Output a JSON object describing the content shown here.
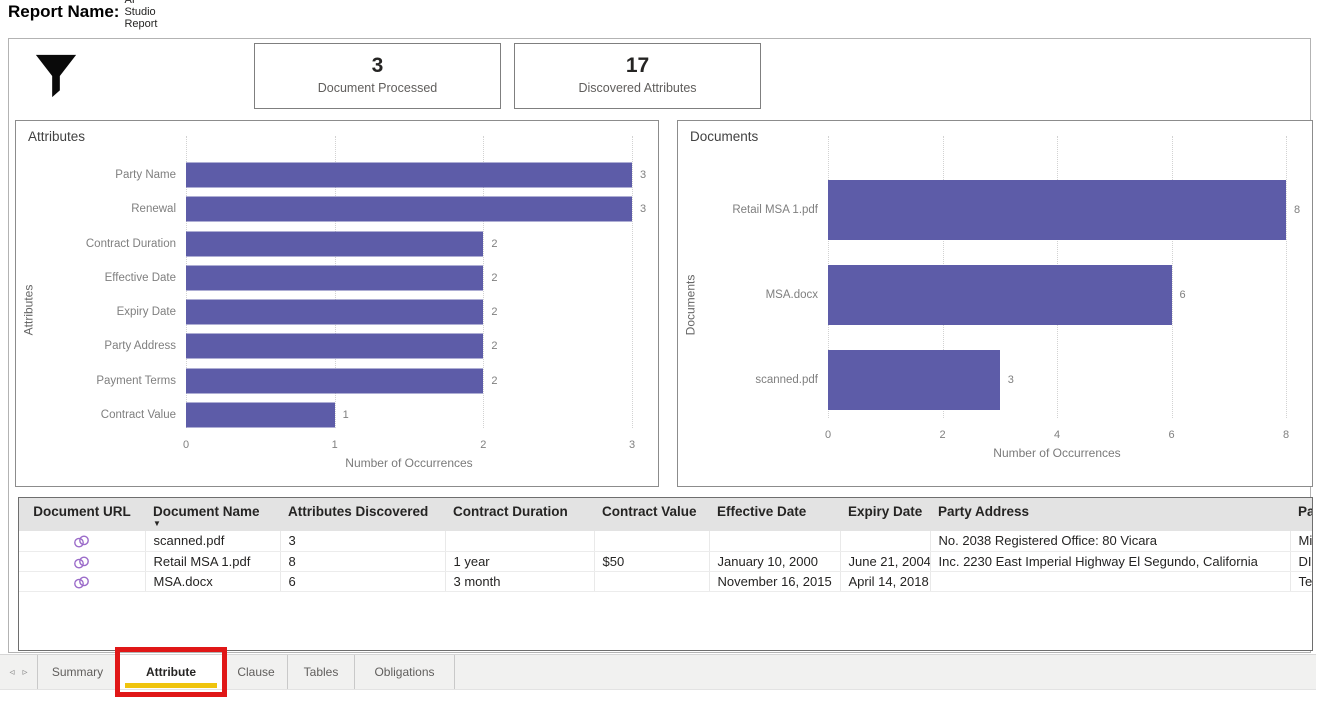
{
  "header": {
    "label": "Report Name:",
    "title": "AI Studio Report"
  },
  "toolbar": {
    "filter_icon": "funnel-filter"
  },
  "kpi_cards": [
    {
      "value": "3",
      "label": "Document Processed"
    },
    {
      "value": "17",
      "label": "Discovered Attributes"
    }
  ],
  "colors": {
    "bar": "#5d5ca8",
    "active_tab_underline": "#efc40e",
    "annotation_box": "#e01717",
    "link_icon": "#9b6bc9"
  },
  "chart_data": [
    {
      "type": "bar",
      "orientation": "horizontal",
      "title": "Attributes",
      "ylabel": "Attributes",
      "xlabel": "Number of Occurrences",
      "categories": [
        "Party Name",
        "Renewal",
        "Contract Duration",
        "Effective Date",
        "Expiry Date",
        "Party Address",
        "Payment Terms",
        "Contract Value"
      ],
      "values": [
        3,
        3,
        2,
        2,
        2,
        2,
        2,
        1
      ],
      "xlim": [
        0,
        3
      ],
      "xticks": [
        0,
        1,
        2,
        3
      ],
      "grid": true,
      "legend": "none"
    },
    {
      "type": "bar",
      "orientation": "horizontal",
      "title": "Documents",
      "ylabel": "Documents",
      "xlabel": "Number of Occurrences",
      "categories": [
        "Retail MSA 1.pdf",
        "MSA.docx",
        "scanned.pdf"
      ],
      "values": [
        8,
        6,
        3
      ],
      "xlim": [
        0,
        8
      ],
      "xticks": [
        0,
        2,
        4,
        6,
        8
      ],
      "grid": true,
      "legend": "none"
    }
  ],
  "table": {
    "columns": [
      {
        "key": "url",
        "label": "Document URL",
        "align": "center",
        "sorted": false
      },
      {
        "key": "name",
        "label": "Document Name",
        "align": "left",
        "sorted": true
      },
      {
        "key": "attrs",
        "label": "Attributes Discovered",
        "align": "left",
        "sorted": false
      },
      {
        "key": "duration",
        "label": "Contract Duration",
        "align": "left",
        "sorted": false
      },
      {
        "key": "value",
        "label": "Contract Value",
        "align": "left",
        "sorted": false
      },
      {
        "key": "effective",
        "label": "Effective Date",
        "align": "left",
        "sorted": false
      },
      {
        "key": "expiry",
        "label": "Expiry Date",
        "align": "right",
        "sorted": false
      },
      {
        "key": "address",
        "label": "Party Address",
        "align": "left",
        "sorted": false
      },
      {
        "key": "par",
        "label": "Par",
        "align": "left",
        "sorted": false
      }
    ],
    "link_icon": "link-chain",
    "rows": [
      {
        "url": "link",
        "name": "scanned.pdf",
        "attrs": "3",
        "duration": "",
        "value": "",
        "effective": "",
        "expiry": "",
        "address": "No. 2038 Registered Office: 80 Vicara",
        "par": "Min"
      },
      {
        "url": "link",
        "name": "Retail MSA 1.pdf",
        "attrs": "8",
        "duration": "1 year",
        "value": "$50",
        "effective": "January 10, 2000",
        "expiry": "June 21, 2004",
        "address": "Inc. 2230 East Imperial Highway El Segundo, California",
        "par": "DIR"
      },
      {
        "url": "link",
        "name": "MSA.docx",
        "attrs": "6",
        "duration": "3 month",
        "value": "",
        "effective": "November 16, 2015",
        "expiry": "April 14, 2018",
        "address": "",
        "par": "Teal"
      }
    ]
  },
  "tabs": {
    "prev_icon": "◃",
    "next_icon": "▹",
    "items": [
      {
        "label": "Summary",
        "active": false,
        "highlighted": false
      },
      {
        "label": "Attribute",
        "active": true,
        "highlighted": true
      },
      {
        "label": "Clause",
        "active": false,
        "highlighted": false
      },
      {
        "label": "Tables",
        "active": false,
        "highlighted": false
      },
      {
        "label": "Obligations",
        "active": false,
        "highlighted": false
      }
    ]
  }
}
